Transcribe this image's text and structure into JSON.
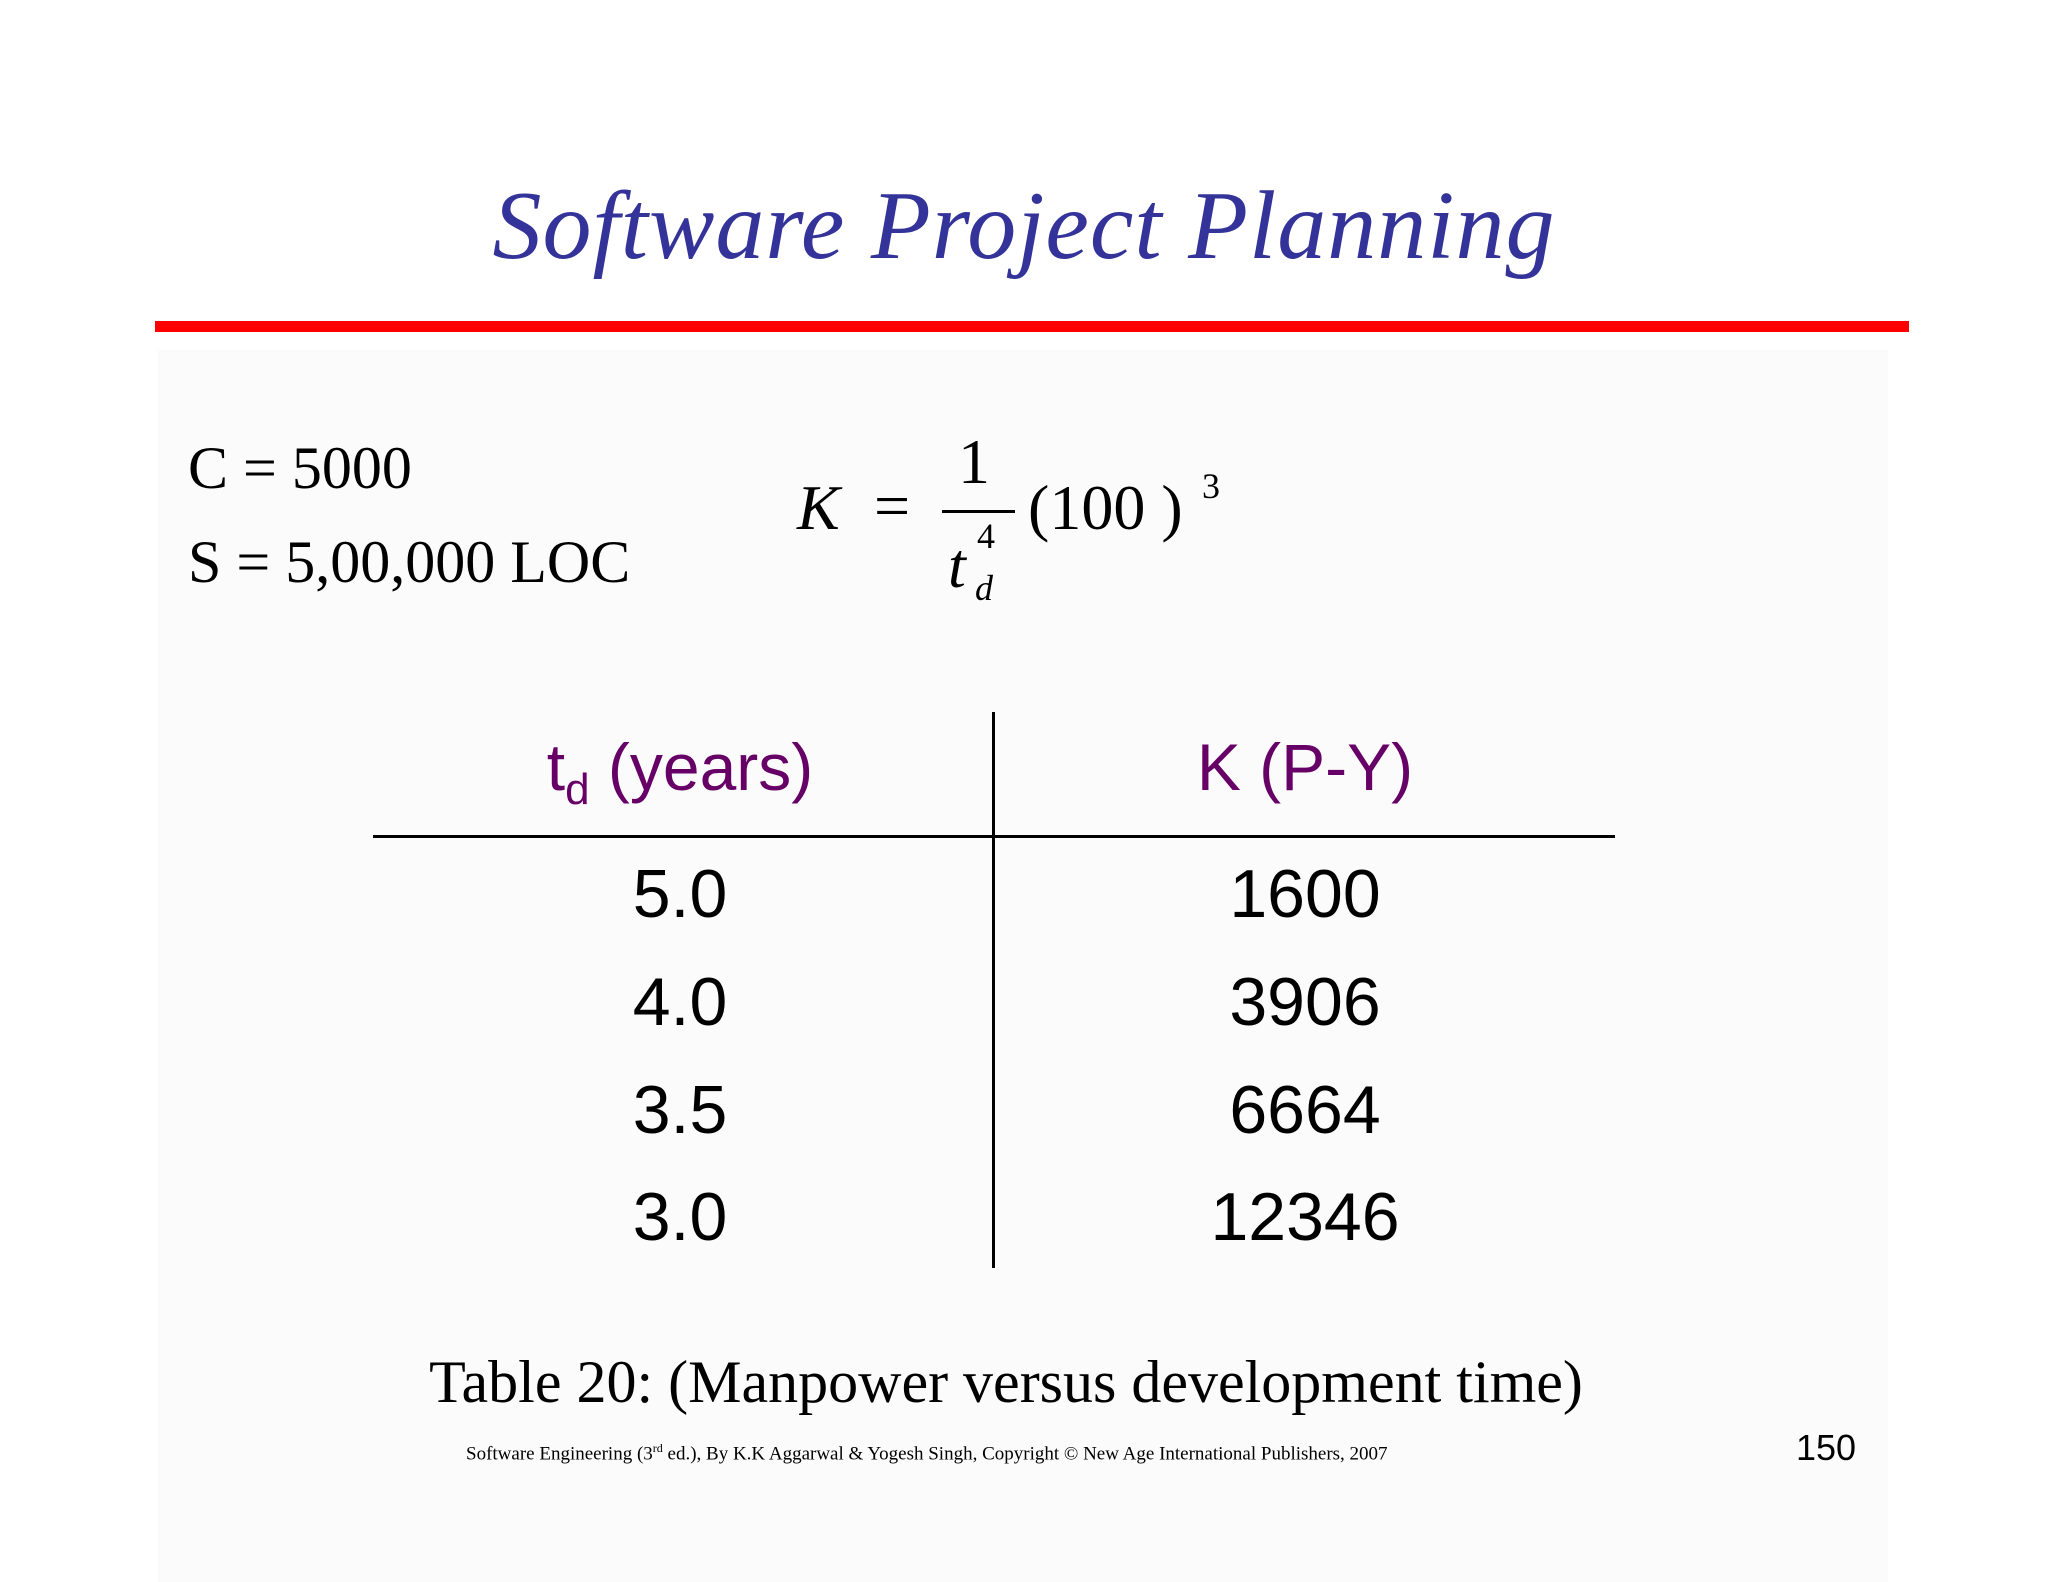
{
  "slide": {
    "title": "Software Project Planning",
    "given": {
      "c": "C = 5000",
      "s": "S = 5,00,000 LOC"
    },
    "formula": {
      "lhs": "K",
      "eq": "=",
      "numerator": "1",
      "denominator_var": "t",
      "denominator_exp": "4",
      "denominator_sub": "d",
      "factor": "(100 )",
      "factor_exp": "3"
    },
    "table": {
      "header": {
        "col1_main": "t",
        "col1_sub": "d",
        "col1_rest": " (years)",
        "col2": "K (P-Y)"
      },
      "rows": [
        {
          "td": "5.0",
          "k": "1600"
        },
        {
          "td": "4.0",
          "k": "3906"
        },
        {
          "td": "3.5",
          "k": "6664"
        },
        {
          "td": "3.0",
          "k": "12346"
        }
      ]
    },
    "caption": "Table 20: (Manpower versus development time)",
    "footer": {
      "pre": "Software Engineering (3",
      "sup": "rd",
      "post": " ed.), By K.K Aggarwal & Yogesh Singh, Copyright © New Age International Publishers, 2007"
    },
    "page_number": "150",
    "colors": {
      "title": "#333399",
      "rule": "#ff0000",
      "header": "#660066"
    }
  }
}
